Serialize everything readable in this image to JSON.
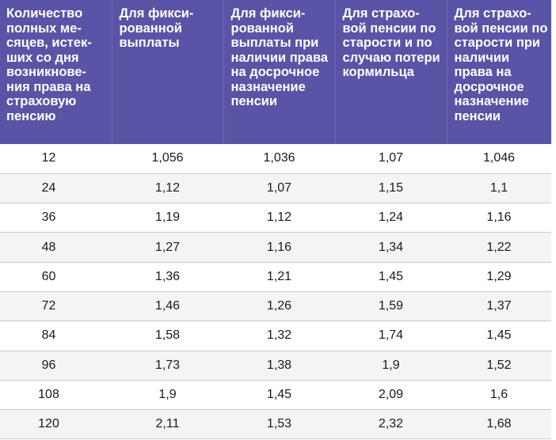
{
  "table": {
    "headers": [
      "Количество полных ме-сяцев, истек-ших со дня возникнове-ния права на страховую пенсию",
      "Для фикси-рованной выплаты",
      "Для фикси-рованной выплаты при наличии права на досрочное назначение пенсии",
      "Для страхо-вой пенсии по старости и по случаю потери кормильца",
      "Для страхо-вой пенсии по старости при наличии права на досрочное назначение пенсии"
    ],
    "rows": [
      [
        "12",
        "1,056",
        "1,036",
        "1,07",
        "1,046"
      ],
      [
        "24",
        "1,12",
        "1,07",
        "1,15",
        "1,1"
      ],
      [
        "36",
        "1,19",
        "1,12",
        "1,24",
        "1,16"
      ],
      [
        "48",
        "1,27",
        "1,16",
        "1,34",
        "1,22"
      ],
      [
        "60",
        "1,36",
        "1,21",
        "1,45",
        "1,29"
      ],
      [
        "72",
        "1,46",
        "1,26",
        "1,59",
        "1,37"
      ],
      [
        "84",
        "1,58",
        "1,32",
        "1,74",
        "1,45"
      ],
      [
        "96",
        "1,73",
        "1,38",
        "1,9",
        "1,52"
      ],
      [
        "108",
        "1,9",
        "1,45",
        "2,09",
        "1,6"
      ],
      [
        "120",
        "2,11",
        "1,53",
        "2,32",
        "1,68"
      ]
    ]
  },
  "colors": {
    "header_bg": "#5a54a6",
    "header_text": "#ffffff",
    "row_alt_bg": "#f4f4f6",
    "border": "#c9c9c9"
  }
}
